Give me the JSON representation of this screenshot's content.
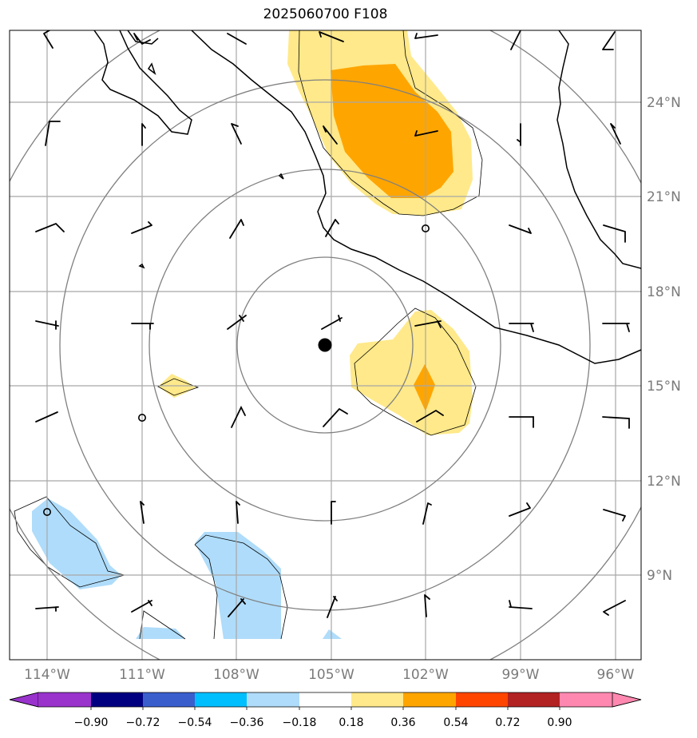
{
  "title": "2025060700 F108",
  "lon_labels": [
    "114°W",
    "111°W",
    "108°W",
    "105°W",
    "102°W",
    "99°W",
    "96°W"
  ],
  "lat_labels": [
    "24°N",
    "21°N",
    "18°N",
    "15°N",
    "12°N",
    "9°N"
  ],
  "colorbar": {
    "colors": [
      "#9933cc",
      "#000080",
      "#3a5fcd",
      "#00bfff",
      "#afdcfa",
      "#ffffff",
      "#ffe98a",
      "#ffa500",
      "#ff4500",
      "#b22222",
      "#ff88b0"
    ],
    "tick_labels": [
      "−0.90",
      "−0.72",
      "−0.54",
      "−0.36",
      "−0.18",
      "0.18",
      "0.36",
      "0.54",
      "0.72",
      "0.90"
    ]
  },
  "colors": {
    "light_yellow": "#ffe98a",
    "orange": "#ffa500",
    "light_blue": "#afdcfa",
    "gridline": "#a8a8a8",
    "range_ring": "#808080",
    "coastline": "#000000"
  },
  "center_marker": "filled-black-circle",
  "wind_barbs": "black"
}
